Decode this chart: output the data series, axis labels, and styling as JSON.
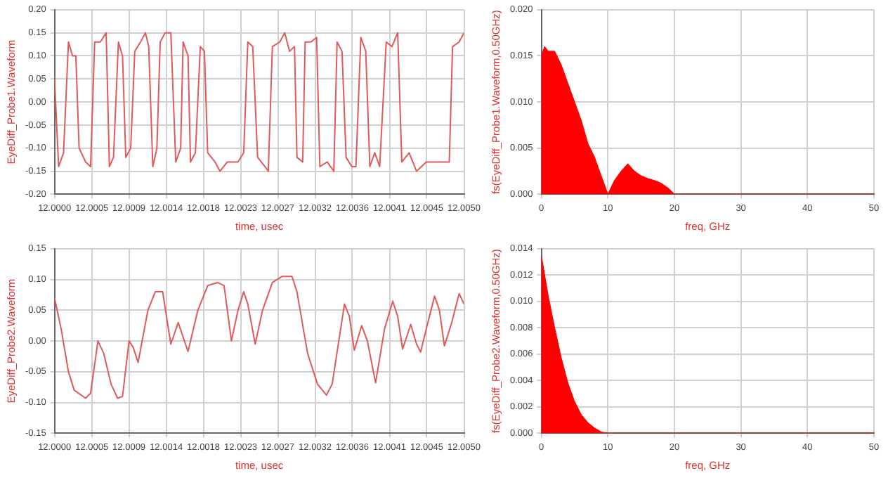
{
  "chart_data": [
    {
      "type": "line",
      "xlabel": "time, usec",
      "ylabel": "EyeDiff_Probe1.Waveform",
      "grid": true,
      "legend": false,
      "marker": "none",
      "xlim": [
        12.0,
        12.005
      ],
      "xticks": [
        {
          "value": 12.0,
          "label": "12.0000"
        },
        {
          "value": 12.000455,
          "label": "12.0005"
        },
        {
          "value": 12.000909,
          "label": "12.0009"
        },
        {
          "value": 12.001364,
          "label": "12.0014"
        },
        {
          "value": 12.001818,
          "label": "12.0018"
        },
        {
          "value": 12.002273,
          "label": "12.0023"
        },
        {
          "value": 12.002727,
          "label": "12.0027"
        },
        {
          "value": 12.003182,
          "label": "12.0032"
        },
        {
          "value": 12.003636,
          "label": "12.0036"
        },
        {
          "value": 12.004091,
          "label": "12.0041"
        },
        {
          "value": 12.004545,
          "label": "12.0045"
        },
        {
          "value": 12.005,
          "label": "12.0050"
        }
      ],
      "ylim": [
        -0.2,
        0.2
      ],
      "yticks": [
        {
          "value": -0.2,
          "label": "-0.20"
        },
        {
          "value": -0.15,
          "label": "-0.15"
        },
        {
          "value": -0.1,
          "label": "-0.10"
        },
        {
          "value": -0.05,
          "label": "-0.05"
        },
        {
          "value": 0,
          "label": "0.00"
        },
        {
          "value": 0.05,
          "label": "0.05"
        },
        {
          "value": 0.1,
          "label": "0.10"
        },
        {
          "value": 0.15,
          "label": "0.15"
        },
        {
          "value": 0.2,
          "label": "0.20"
        }
      ],
      "series": [
        {
          "color": "#e05a5a",
          "x": [
            12.0,
            12.00005,
            12.00011,
            12.00017,
            12.00022,
            12.00026,
            12.0003,
            12.00038,
            12.00044,
            12.00049,
            12.00056,
            12.00063,
            12.00067,
            12.00072,
            12.00078,
            12.00083,
            12.00087,
            12.00093,
            12.00098,
            12.00105,
            12.00111,
            12.00115,
            12.0012,
            12.00125,
            12.00129,
            12.00135,
            12.00142,
            12.00148,
            12.00154,
            12.00157,
            12.00163,
            12.00166,
            12.00172,
            12.00178,
            12.00183,
            12.00187,
            12.00196,
            12.00202,
            12.00211,
            12.00224,
            12.00231,
            12.00236,
            12.00242,
            12.00248,
            12.00257,
            12.00261,
            12.00266,
            12.00275,
            12.00281,
            12.00287,
            12.00293,
            12.00296,
            12.00303,
            12.00306,
            12.00313,
            12.0032,
            12.00324,
            12.00333,
            12.00341,
            12.00345,
            12.00351,
            12.00356,
            12.00363,
            12.00368,
            12.00374,
            12.0038,
            12.00385,
            12.00391,
            12.00397,
            12.00405,
            12.00412,
            12.00419,
            12.00424,
            12.00433,
            12.00442,
            12.00454,
            12.00467,
            12.00482,
            12.00486,
            12.00494,
            12.005
          ],
          "values": [
            0.05,
            -0.14,
            -0.11,
            0.13,
            0.1,
            0.1,
            -0.1,
            -0.13,
            -0.14,
            0.13,
            0.13,
            0.15,
            -0.14,
            -0.12,
            0.13,
            0.1,
            -0.12,
            -0.1,
            0.11,
            0.13,
            0.15,
            0.12,
            -0.14,
            -0.1,
            0.13,
            0.15,
            0.15,
            -0.13,
            -0.1,
            0.13,
            0.1,
            -0.13,
            -0.11,
            0.12,
            0.11,
            -0.11,
            -0.13,
            -0.15,
            -0.13,
            -0.13,
            -0.11,
            0.13,
            0.12,
            -0.12,
            -0.14,
            -0.15,
            0.12,
            0.13,
            0.15,
            0.11,
            0.12,
            -0.12,
            -0.13,
            0.13,
            0.13,
            0.14,
            -0.14,
            -0.13,
            -0.15,
            0.13,
            0.11,
            -0.12,
            -0.14,
            -0.14,
            0.14,
            0.11,
            -0.14,
            -0.11,
            -0.14,
            0.13,
            0.12,
            0.15,
            -0.13,
            -0.11,
            -0.15,
            -0.13,
            -0.13,
            -0.13,
            0.12,
            0.13,
            0.15
          ]
        }
      ]
    },
    {
      "type": "area",
      "xlabel": "freq, GHz",
      "ylabel": "fs(EyeDiff_Probe1.Waveform,0.50GHz)",
      "grid": true,
      "legend": false,
      "marker": "none",
      "xlim": [
        0,
        50
      ],
      "xticks": [
        0,
        10,
        20,
        30,
        40,
        50
      ],
      "ylim": [
        0,
        0.02
      ],
      "yticks": [
        {
          "value": 0,
          "label": "0.000"
        },
        {
          "value": 0.005,
          "label": "0.005"
        },
        {
          "value": 0.01,
          "label": "0.010"
        },
        {
          "value": 0.015,
          "label": "0.015"
        },
        {
          "value": 0.02,
          "label": "0.020"
        }
      ],
      "series": [
        {
          "color": "#ff0000",
          "x": [
            0,
            0.5,
            1,
            2,
            3,
            4,
            5,
            6,
            7,
            8,
            9,
            10,
            11,
            12,
            13,
            14,
            15,
            16,
            17,
            18,
            19,
            20,
            50
          ],
          "values": [
            0.015,
            0.016,
            0.0155,
            0.0155,
            0.014,
            0.012,
            0.01,
            0.008,
            0.0055,
            0.004,
            0.002,
            0,
            0.0015,
            0.0025,
            0.0033,
            0.0025,
            0.002,
            0.0017,
            0.0015,
            0.0012,
            0.0007,
            0,
            0
          ]
        }
      ]
    },
    {
      "type": "line",
      "xlabel": "time, usec",
      "ylabel": "EyeDiff_Probe2.Waveform",
      "grid": true,
      "legend": false,
      "marker": "none",
      "xlim": [
        12.0,
        12.005
      ],
      "xticks": [
        {
          "value": 12.0,
          "label": "12.0000"
        },
        {
          "value": 12.000455,
          "label": "12.0005"
        },
        {
          "value": 12.000909,
          "label": "12.0009"
        },
        {
          "value": 12.001364,
          "label": "12.0014"
        },
        {
          "value": 12.001818,
          "label": "12.0018"
        },
        {
          "value": 12.002273,
          "label": "12.0023"
        },
        {
          "value": 12.002727,
          "label": "12.0027"
        },
        {
          "value": 12.003182,
          "label": "12.0032"
        },
        {
          "value": 12.003636,
          "label": "12.0036"
        },
        {
          "value": 12.004091,
          "label": "12.0041"
        },
        {
          "value": 12.004545,
          "label": "12.0045"
        },
        {
          "value": 12.005,
          "label": "12.0050"
        }
      ],
      "ylim": [
        -0.15,
        0.15
      ],
      "yticks": [
        {
          "value": -0.15,
          "label": "-0.15"
        },
        {
          "value": -0.1,
          "label": "-0.10"
        },
        {
          "value": -0.05,
          "label": "-0.05"
        },
        {
          "value": 0,
          "label": "0.00"
        },
        {
          "value": 0.05,
          "label": "0.05"
        },
        {
          "value": 0.1,
          "label": "0.10"
        },
        {
          "value": 0.15,
          "label": "0.15"
        }
      ],
      "series": [
        {
          "color": "#e05a5a",
          "x": [
            12.0,
            12.00008,
            12.00017,
            12.00024,
            12.00038,
            12.00044,
            12.00053,
            12.0006,
            12.00069,
            12.00077,
            12.00083,
            12.00091,
            12.00096,
            12.00102,
            12.00114,
            12.00123,
            12.00132,
            12.00142,
            12.00151,
            12.00163,
            12.00175,
            12.00187,
            12.00199,
            12.00207,
            12.00216,
            12.00224,
            12.00231,
            12.00236,
            12.00245,
            12.00254,
            12.00266,
            12.00278,
            12.0029,
            12.00296,
            12.00309,
            12.00321,
            12.00332,
            12.00339,
            12.00354,
            12.0036,
            12.00366,
            12.00375,
            12.00382,
            12.00392,
            12.00403,
            12.00413,
            12.00419,
            12.00425,
            12.00435,
            12.00442,
            12.00447,
            12.00454,
            12.00464,
            12.0047,
            12.00476,
            12.00485,
            12.00494,
            12.005
          ],
          "values": [
            0.07,
            0.02,
            -0.05,
            -0.08,
            -0.093,
            -0.085,
            0.0,
            -0.02,
            -0.07,
            -0.093,
            -0.09,
            0.0,
            -0.01,
            -0.035,
            0.05,
            0.08,
            0.08,
            -0.005,
            0.03,
            -0.017,
            0.05,
            0.09,
            0.095,
            0.09,
            0.0,
            0.05,
            0.08,
            0.06,
            -0.005,
            0.05,
            0.095,
            0.105,
            0.105,
            0.08,
            -0.02,
            -0.07,
            -0.088,
            -0.07,
            0.06,
            0.04,
            -0.015,
            0.025,
            0.0,
            -0.068,
            0.02,
            0.065,
            0.04,
            -0.013,
            0.027,
            -0.005,
            -0.018,
            0.02,
            0.073,
            0.05,
            -0.008,
            0.03,
            0.077,
            0.06
          ]
        }
      ]
    },
    {
      "type": "area",
      "xlabel": "freq, GHz",
      "ylabel": "fs(EyeDiff_Probe2.Waveform,0.50GHz)",
      "grid": true,
      "legend": false,
      "marker": "none",
      "xlim": [
        0,
        50
      ],
      "xticks": [
        0,
        10,
        20,
        30,
        40,
        50
      ],
      "ylim": [
        0,
        0.014
      ],
      "yticks": [
        {
          "value": 0,
          "label": "0.000"
        },
        {
          "value": 0.002,
          "label": "0.002"
        },
        {
          "value": 0.004,
          "label": "0.004"
        },
        {
          "value": 0.006,
          "label": "0.006"
        },
        {
          "value": 0.008,
          "label": "0.008"
        },
        {
          "value": 0.01,
          "label": "0.010"
        },
        {
          "value": 0.012,
          "label": "0.012"
        },
        {
          "value": 0.014,
          "label": "0.014"
        }
      ],
      "series": [
        {
          "color": "#ff0000",
          "x": [
            0,
            0.5,
            1,
            2,
            3,
            4,
            5,
            6,
            7,
            8,
            9,
            10,
            50
          ],
          "values": [
            0.0135,
            0.012,
            0.0105,
            0.008,
            0.0057,
            0.0038,
            0.0024,
            0.0014,
            0.0008,
            0.0004,
            0.0001,
            0,
            0
          ]
        }
      ]
    }
  ]
}
